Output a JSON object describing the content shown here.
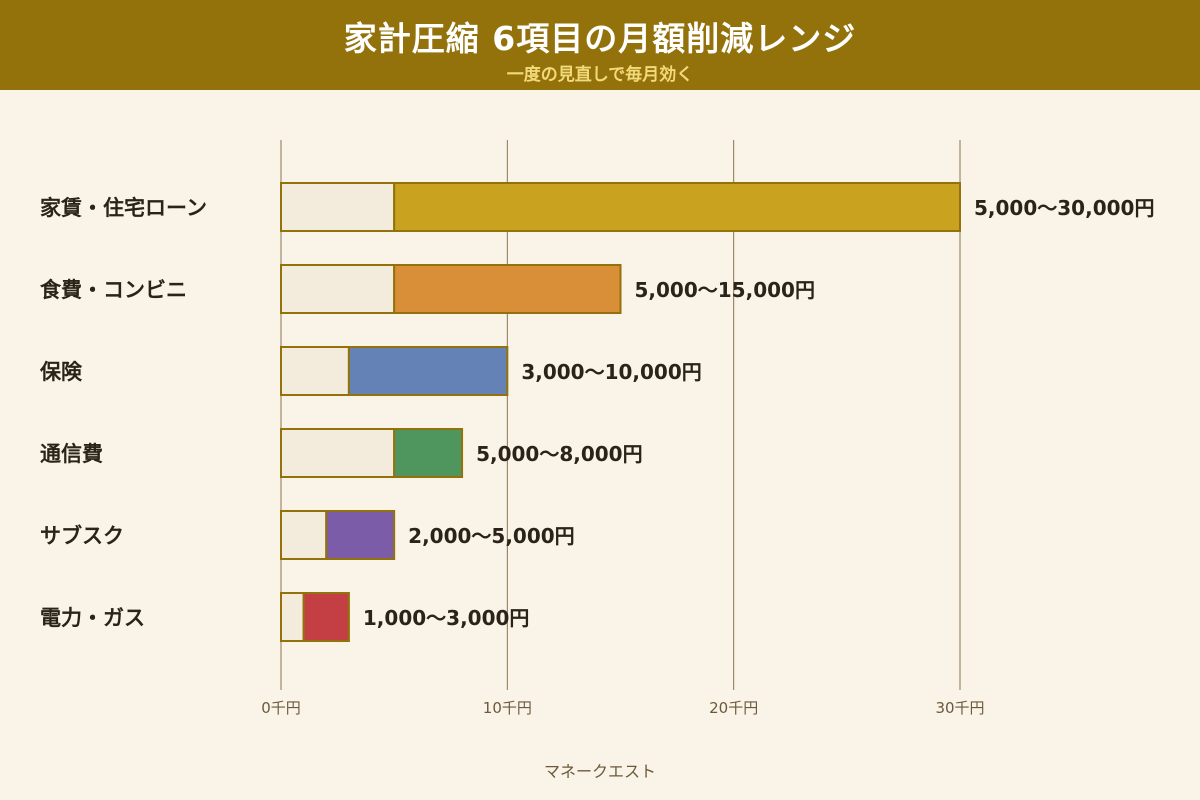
{
  "header": {
    "title": "家計圧縮 6項目の月額削減レンジ",
    "subtitle": "一度の見直しで毎月効く",
    "background": "#94720b"
  },
  "footer": {
    "credit": "マネークエスト"
  },
  "chart_data": {
    "type": "bar",
    "orientation": "horizontal",
    "stacked_range": true,
    "unit": "円",
    "xlim": [
      0,
      30000
    ],
    "ticks": [
      {
        "value": 0,
        "label": "0千円"
      },
      {
        "value": 10000,
        "label": "10千円"
      },
      {
        "value": 20000,
        "label": "20千円"
      },
      {
        "value": 30000,
        "label": "30千円"
      }
    ],
    "grid": true,
    "range_base_color": "#f3ecdc",
    "categories": [
      {
        "name": "家賃・住宅ローン",
        "min": 5000,
        "max": 30000,
        "label": "5,000〜30,000円",
        "color": "#c9a31f"
      },
      {
        "name": "食費・コンビニ",
        "min": 5000,
        "max": 15000,
        "label": "5,000〜15,000円",
        "color": "#d98f38"
      },
      {
        "name": "保険",
        "min": 3000,
        "max": 10000,
        "label": "3,000〜10,000円",
        "color": "#6482b5"
      },
      {
        "name": "通信費",
        "min": 5000,
        "max": 8000,
        "label": "5,000〜8,000円",
        "color": "#4e965e"
      },
      {
        "name": "サブスク",
        "min": 2000,
        "max": 5000,
        "label": "2,000〜5,000円",
        "color": "#7a5ca8"
      },
      {
        "name": "電力・ガス",
        "min": 1000,
        "max": 3000,
        "label": "1,000〜3,000円",
        "color": "#c43f44"
      }
    ]
  }
}
